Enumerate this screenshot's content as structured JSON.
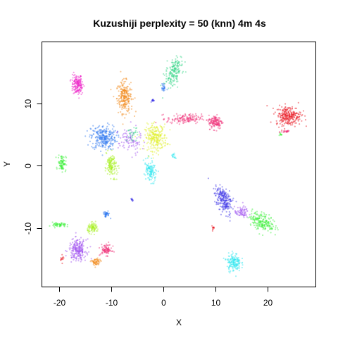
{
  "chart_data": {
    "type": "scatter",
    "title": "Kuzushiji perplexity = 50 (knn) 4m 4s",
    "xlabel": "X",
    "ylabel": "Y",
    "xlim": [
      -23.3,
      29.2
    ],
    "ylim": [
      -19.4,
      19.8
    ],
    "xticks": [
      -20,
      -10,
      0,
      10,
      20
    ],
    "yticks": [
      -10,
      0,
      10
    ],
    "yticks_rotated": true,
    "grid": false,
    "legend": "none",
    "marker": "small semi-transparent dots",
    "colors": {
      "red": "#e8141e",
      "orange": "#f28a1a",
      "yellow": "#dff02a",
      "chartreuse": "#a6f01e",
      "green": "#3ef03c",
      "teal": "#3cd88c",
      "cyan": "#2ee6f0",
      "blue": "#2e78f0",
      "indigo": "#3c32e6",
      "purple": "#a050f0",
      "magenta": "#ee22c8",
      "pink": "#f0327a"
    },
    "clusters": [
      {
        "color": "magenta",
        "x": -16.5,
        "y": 13.0,
        "sx": 1.0,
        "sy": 1.5,
        "n": 170,
        "angle": 0.2
      },
      {
        "color": "orange",
        "x": -7.5,
        "y": 11.0,
        "sx": 1.3,
        "sy": 2.3,
        "n": 240,
        "angle": 0.1
      },
      {
        "color": "teal",
        "x": 2.0,
        "y": 15.0,
        "sx": 1.2,
        "sy": 2.1,
        "n": 190,
        "angle": -0.4
      },
      {
        "color": "blue",
        "x": -11.5,
        "y": 4.5,
        "sx": 2.2,
        "sy": 1.8,
        "n": 280,
        "angle": 0
      },
      {
        "color": "yellow",
        "x": -1.5,
        "y": 4.5,
        "sx": 1.9,
        "sy": 1.9,
        "n": 260,
        "angle": 0
      },
      {
        "color": "chartreuse",
        "x": -10.0,
        "y": 0.0,
        "sx": 0.9,
        "sy": 1.7,
        "n": 140,
        "angle": 0.2
      },
      {
        "color": "cyan",
        "x": -2.5,
        "y": -1.0,
        "sx": 0.9,
        "sy": 1.6,
        "n": 120,
        "angle": 0.3
      },
      {
        "color": "green",
        "x": -19.5,
        "y": 0.5,
        "sx": 0.7,
        "sy": 1.2,
        "n": 90,
        "angle": 0
      },
      {
        "color": "pink",
        "x": 4.0,
        "y": 7.5,
        "sx": 3.0,
        "sy": 0.7,
        "n": 150,
        "angle": 0
      },
      {
        "color": "pink",
        "x": 10.0,
        "y": 7.0,
        "sx": 1.2,
        "sy": 1.0,
        "n": 140,
        "angle": 0
      },
      {
        "color": "red",
        "x": 24.0,
        "y": 8.0,
        "sx": 2.2,
        "sy": 1.4,
        "n": 260,
        "angle": 0
      },
      {
        "color": "indigo",
        "x": 11.5,
        "y": -5.5,
        "sx": 1.2,
        "sy": 2.2,
        "n": 230,
        "angle": 0.4
      },
      {
        "color": "purple",
        "x": 15.0,
        "y": -7.5,
        "sx": 1.2,
        "sy": 0.8,
        "n": 70,
        "angle": 0
      },
      {
        "color": "green",
        "x": 19.0,
        "y": -9.0,
        "sx": 2.3,
        "sy": 1.2,
        "n": 210,
        "angle": -0.35
      },
      {
        "color": "cyan",
        "x": 13.5,
        "y": -15.5,
        "sx": 1.2,
        "sy": 1.3,
        "n": 160,
        "angle": 0
      },
      {
        "color": "green",
        "x": -20.0,
        "y": -9.5,
        "sx": 1.2,
        "sy": 0.35,
        "n": 60,
        "angle": 0
      },
      {
        "color": "chartreuse",
        "x": -13.5,
        "y": -10.0,
        "sx": 1.0,
        "sy": 0.7,
        "n": 90,
        "angle": 0
      },
      {
        "color": "purple",
        "x": -16.5,
        "y": -13.5,
        "sx": 1.5,
        "sy": 1.5,
        "n": 220,
        "angle": 0
      },
      {
        "color": "pink",
        "x": -11.0,
        "y": -13.5,
        "sx": 1.0,
        "sy": 0.8,
        "n": 90,
        "angle": 0
      },
      {
        "color": "orange",
        "x": -13.0,
        "y": -15.5,
        "sx": 0.8,
        "sy": 0.6,
        "n": 60,
        "angle": 0
      },
      {
        "color": "blue",
        "x": -11.0,
        "y": -7.8,
        "sx": 0.6,
        "sy": 0.4,
        "n": 40,
        "angle": 0
      },
      {
        "color": "blue",
        "x": 0.0,
        "y": 12.5,
        "sx": 0.3,
        "sy": 0.6,
        "n": 25,
        "angle": 0
      },
      {
        "color": "indigo",
        "x": -2.0,
        "y": 10.5,
        "sx": 0.3,
        "sy": 0.2,
        "n": 15,
        "angle": 0
      },
      {
        "color": "cyan",
        "x": 2.0,
        "y": 1.5,
        "sx": 0.3,
        "sy": 0.4,
        "n": 15,
        "angle": 0
      },
      {
        "color": "indigo",
        "x": -6.0,
        "y": -5.5,
        "sx": 0.2,
        "sy": 0.2,
        "n": 10,
        "angle": 0
      },
      {
        "color": "pink",
        "x": 23.5,
        "y": 5.5,
        "sx": 0.8,
        "sy": 0.2,
        "n": 25,
        "angle": 0
      },
      {
        "color": "green",
        "x": 22.5,
        "y": 5.0,
        "sx": 0.3,
        "sy": 0.3,
        "n": 10,
        "angle": 0
      },
      {
        "color": "red",
        "x": 9.5,
        "y": -10.0,
        "sx": 0.3,
        "sy": 0.3,
        "n": 12,
        "angle": 0
      },
      {
        "color": "red",
        "x": -19.5,
        "y": -15.0,
        "sx": 0.3,
        "sy": 0.5,
        "n": 12,
        "angle": 0
      },
      {
        "color": "purple",
        "x": -6.5,
        "y": 4.0,
        "sx": 2.0,
        "sy": 2.0,
        "n": 90,
        "angle": 0
      },
      {
        "color": "teal",
        "x": -6.0,
        "y": 5.0,
        "sx": 1.0,
        "sy": 1.0,
        "n": 30,
        "angle": 0
      }
    ]
  }
}
